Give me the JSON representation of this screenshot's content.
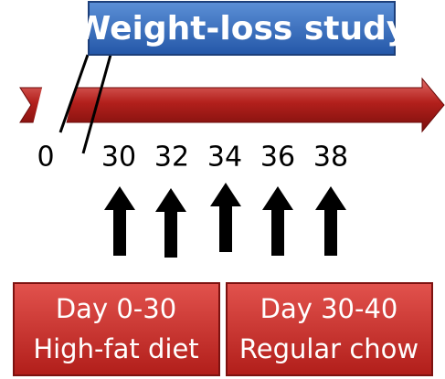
{
  "title": "Weight-loss study",
  "timeline": {
    "labels": [
      "0",
      "30",
      "32",
      "34",
      "36",
      "38"
    ]
  },
  "boxes": [
    {
      "lines": [
        "Day 0-30",
        "High-fat diet"
      ]
    },
    {
      "lines": [
        "Day 30-40",
        "Regular chow"
      ]
    }
  ]
}
